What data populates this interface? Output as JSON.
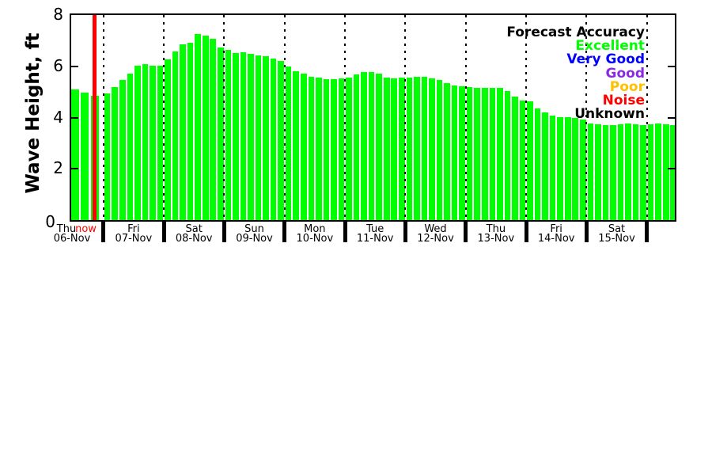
{
  "chart_data": {
    "type": "bar",
    "title": "",
    "ylabel": "Wave Height, ft",
    "xlabel": "",
    "ylim": [
      0,
      8
    ],
    "yticks": [
      0,
      2,
      4,
      6,
      8
    ],
    "grid": "vertical-dotted-day-separators",
    "bar_color": "#00FF00",
    "now_line_color": "#FF0000",
    "now_label": "now",
    "days": [
      {
        "weekday": "Thu",
        "date": "06-Nov",
        "values": [
          5.1,
          4.97,
          4.85
        ]
      },
      {
        "weekday": "Fri",
        "date": "07-Nov",
        "values": [
          4.95,
          5.2,
          5.46,
          5.71,
          6.01,
          6.08,
          6.02,
          6.03
        ]
      },
      {
        "weekday": "Sat",
        "date": "08-Nov",
        "values": [
          6.28,
          6.59,
          6.85,
          6.92,
          7.26,
          7.21,
          7.07,
          6.73
        ]
      },
      {
        "weekday": "Sun",
        "date": "09-Nov",
        "values": [
          6.63,
          6.53,
          6.56,
          6.49,
          6.44,
          6.39,
          6.3,
          6.22
        ]
      },
      {
        "weekday": "Mon",
        "date": "10-Nov",
        "values": [
          6.0,
          5.82,
          5.7,
          5.6,
          5.56,
          5.51,
          5.5,
          5.52
        ]
      },
      {
        "weekday": "Tue",
        "date": "11-Nov",
        "values": [
          5.55,
          5.69,
          5.77,
          5.79,
          5.7,
          5.56,
          5.53,
          5.55
        ]
      },
      {
        "weekday": "Wed",
        "date": "12-Nov",
        "values": [
          5.55,
          5.6,
          5.58,
          5.53,
          5.46,
          5.34,
          5.26,
          5.21
        ]
      },
      {
        "weekday": "Thu",
        "date": "13-Nov",
        "values": [
          5.19,
          5.16,
          5.17,
          5.15,
          5.16,
          5.03,
          4.83,
          4.65
        ]
      },
      {
        "weekday": "Fri",
        "date": "14-Nov",
        "values": [
          4.62,
          4.36,
          4.21,
          4.09,
          4.01,
          4.01,
          3.98,
          3.93
        ]
      },
      {
        "weekday": "Sat",
        "date": "15-Nov",
        "values": [
          3.76,
          3.74,
          3.71,
          3.72,
          3.74,
          3.76,
          3.74,
          3.72
        ]
      },
      {
        "weekday": "",
        "date": "",
        "values": [
          3.73,
          3.76,
          3.73,
          3.7
        ]
      }
    ],
    "legend": {
      "title": "Forecast Accuracy",
      "title_color": "#000000",
      "position": "upper right inside plot",
      "entries": [
        {
          "label": "Excellent",
          "color": "#00FF00"
        },
        {
          "label": "Very Good",
          "color": "#0000FF"
        },
        {
          "label": "Good",
          "color": "#8A2BE2"
        },
        {
          "label": "Poor",
          "color": "#FFC000"
        },
        {
          "label": "Noise",
          "color": "#FF0000"
        },
        {
          "label": "Unknown",
          "color": "#000000"
        }
      ]
    }
  }
}
